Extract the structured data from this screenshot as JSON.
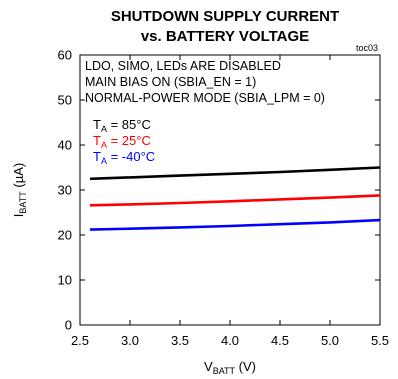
{
  "chart_data": {
    "type": "line",
    "title": [
      "SHUTDOWN SUPPLY CURRENT",
      "vs. BATTERY VOLTAGE"
    ],
    "ref_code": "toc03",
    "xlabel": {
      "main": "V",
      "sub": "BATT",
      "unit": " (V)"
    },
    "ylabel": {
      "main": "I",
      "sub": "BATT",
      "unit": " (µA)"
    },
    "xlim": [
      2.5,
      5.5
    ],
    "ylim": [
      0,
      60
    ],
    "xticks": [
      "2.5",
      "3.0",
      "3.5",
      "4.0",
      "4.5",
      "5.0",
      "5.5"
    ],
    "yticks": [
      "0",
      "10",
      "20",
      "30",
      "40",
      "50",
      "60"
    ],
    "grid": false,
    "annotations": [
      "LDO, SIMO, LEDs ARE DISABLED",
      "MAIN BIAS ON (SBIA_EN = 1)",
      "NORMAL-POWER MODE (SBIA_LPM = 0)"
    ],
    "legend_position": "top-left",
    "series": [
      {
        "name": {
          "main": "T",
          "sub": "A",
          "rest": " = 85°C"
        },
        "color": "#000000",
        "x": [
          2.6,
          3.0,
          3.5,
          4.0,
          4.5,
          5.0,
          5.5
        ],
        "values": [
          32.5,
          32.8,
          33.2,
          33.6,
          34.0,
          34.5,
          35.0
        ]
      },
      {
        "name": {
          "main": "T",
          "sub": "A",
          "rest": " = 25°C"
        },
        "color": "#ff0000",
        "x": [
          2.6,
          3.0,
          3.5,
          4.0,
          4.5,
          5.0,
          5.5
        ],
        "values": [
          26.6,
          26.8,
          27.1,
          27.5,
          27.9,
          28.3,
          28.8
        ]
      },
      {
        "name": {
          "main": "T",
          "sub": "A",
          "rest": " = -40°C"
        },
        "color": "#0000ff",
        "x": [
          2.6,
          3.0,
          3.5,
          4.0,
          4.5,
          5.0,
          5.5
        ],
        "values": [
          21.2,
          21.4,
          21.7,
          22.0,
          22.4,
          22.8,
          23.3
        ]
      }
    ]
  }
}
